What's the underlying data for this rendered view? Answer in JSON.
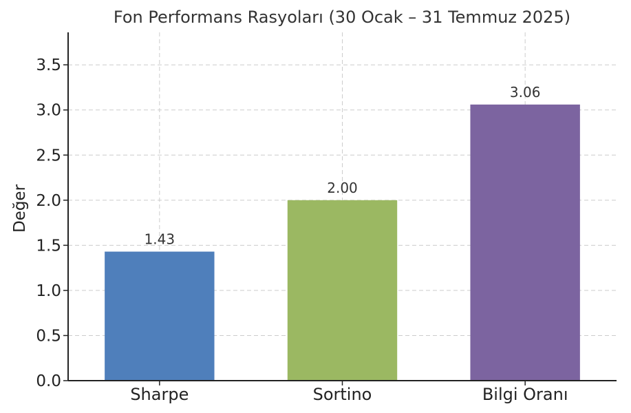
{
  "chart_data": {
    "type": "bar",
    "title": "Fon Performans Rasyoları (30 Ocak – 31 Temmuz 2025)",
    "xlabel": "",
    "ylabel": "Değer",
    "categories": [
      "Sharpe",
      "Sortino",
      "Bilgi Oranı"
    ],
    "values": [
      1.43,
      2.0,
      3.06
    ],
    "value_labels": [
      "1.43",
      "2.00",
      "3.06"
    ],
    "colors": [
      "#4f7fbb",
      "#9bb862",
      "#7c64a0"
    ],
    "ylim": [
      0,
      3.86
    ],
    "yticks": [
      0.0,
      0.5,
      1.0,
      1.5,
      2.0,
      2.5,
      3.0,
      3.5
    ],
    "ytick_labels": [
      "0.0",
      "0.5",
      "1.0",
      "1.5",
      "2.0",
      "2.5",
      "3.0",
      "3.5"
    ],
    "grid": true
  }
}
